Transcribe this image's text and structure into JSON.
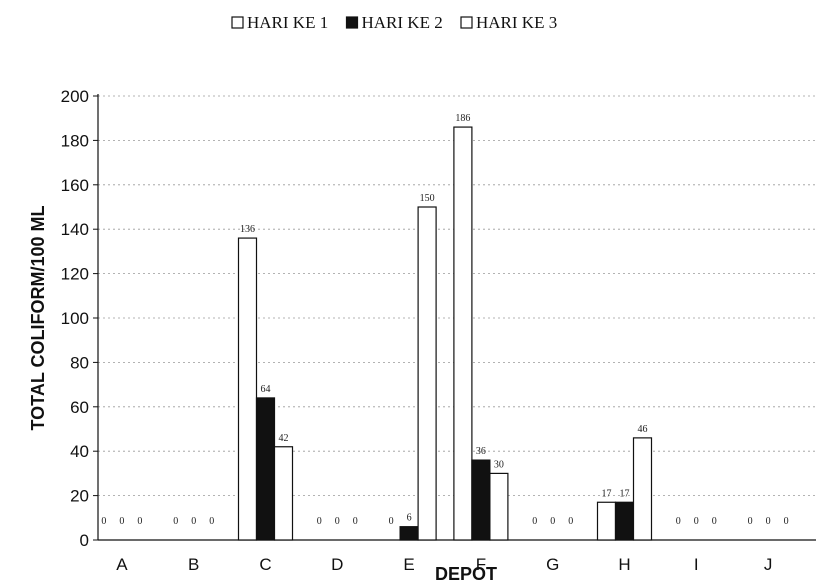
{
  "chart_data": {
    "type": "bar",
    "title": "",
    "xlabel": "DEPOT",
    "ylabel": "TOTAL COLIFORM/100 ML",
    "ylim": [
      0,
      200
    ],
    "yticks": [
      "0",
      "20",
      "40",
      "60",
      "80",
      "100",
      "120",
      "140",
      "160",
      "180",
      "200"
    ],
    "grid": true,
    "legend_position": "top",
    "categories": [
      "A",
      "B",
      "C",
      "D",
      "E",
      "F",
      "G",
      "H",
      "I",
      "J"
    ],
    "series": [
      {
        "name": "HARI KE 1",
        "color": "#ffffff",
        "values": [
          0,
          0,
          136,
          0,
          0,
          186,
          0,
          17,
          0,
          0
        ]
      },
      {
        "name": "HARI KE 2",
        "color": "#111111",
        "values": [
          0,
          0,
          64,
          0,
          6,
          36,
          0,
          17,
          0,
          0
        ]
      },
      {
        "name": "HARI KE 3",
        "color": "#ffffff",
        "values": [
          0,
          0,
          42,
          0,
          150,
          30,
          0,
          46,
          0,
          0
        ]
      }
    ]
  }
}
